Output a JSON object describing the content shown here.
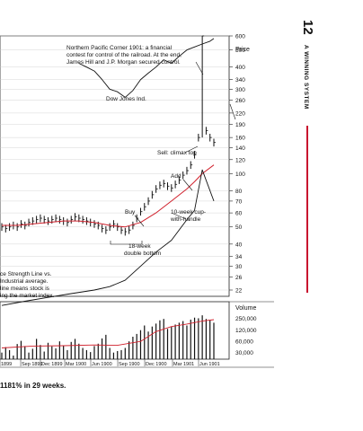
{
  "sidebar": {
    "chapter_number": "12",
    "chapter_title": "A WINNING SYSTEM",
    "accent_color": "#c8102e"
  },
  "caption": "1181% in 29 weeks.",
  "chart_data": {
    "type": "line",
    "price_axis_title": "Price",
    "price_ticks": [
      600,
      500,
      400,
      340,
      300,
      260,
      220,
      190,
      160,
      140,
      120,
      100,
      80,
      70,
      60,
      50,
      40,
      34,
      30,
      26,
      22
    ],
    "volume_axis_title": "Volume",
    "volume_ticks": [
      "250,000",
      "120,000",
      "60,000",
      "30,000"
    ],
    "x_ticks": [
      "1899",
      "Sep 1899",
      "Dec 1899",
      "Mar 1900",
      "Jun 1900",
      "Sep 1900",
      "Dec 1900",
      "Mar 1901",
      "Jun 1901"
    ],
    "annotations": {
      "top_note": [
        "Northern Pacific Corner 1901: a financial",
        "contest for control of the railroad. At the end,",
        "James Hill and J.P. Morgan secured control."
      ],
      "dow_jones": "Dow Jones Ind.",
      "sell": "Sell: climax top",
      "add": "Add",
      "buy": "Buy",
      "cup": [
        "10-week cup-",
        "with-handle"
      ],
      "base": [
        "18-week",
        "double bottom"
      ],
      "rs_note": [
        "ce Strength Line vs.",
        "Industrial average.",
        "line means stock is",
        "ing the market index."
      ]
    },
    "weekly_price": [
      [
        0,
        50
      ],
      [
        1,
        49
      ],
      [
        2,
        50
      ],
      [
        3,
        51
      ],
      [
        4,
        50
      ],
      [
        5,
        52
      ],
      [
        6,
        51
      ],
      [
        7,
        53
      ],
      [
        8,
        54
      ],
      [
        9,
        55
      ],
      [
        10,
        56
      ],
      [
        11,
        55
      ],
      [
        12,
        54
      ],
      [
        13,
        55
      ],
      [
        14,
        56
      ],
      [
        15,
        55
      ],
      [
        16,
        54
      ],
      [
        17,
        53
      ],
      [
        18,
        55
      ],
      [
        19,
        57
      ],
      [
        20,
        56
      ],
      [
        21,
        55
      ],
      [
        22,
        54
      ],
      [
        23,
        53
      ],
      [
        24,
        52
      ],
      [
        25,
        51
      ],
      [
        26,
        49
      ],
      [
        27,
        48
      ],
      [
        28,
        50
      ],
      [
        29,
        52
      ],
      [
        30,
        50
      ],
      [
        31,
        48
      ],
      [
        32,
        47
      ],
      [
        33,
        48
      ],
      [
        34,
        51
      ],
      [
        35,
        56
      ],
      [
        36,
        61
      ],
      [
        37,
        65
      ],
      [
        38,
        70
      ],
      [
        39,
        76
      ],
      [
        40,
        82
      ],
      [
        41,
        86
      ],
      [
        42,
        88
      ],
      [
        43,
        85
      ],
      [
        44,
        83
      ],
      [
        45,
        87
      ],
      [
        46,
        92
      ],
      [
        47,
        98
      ],
      [
        48,
        104
      ],
      [
        49,
        112
      ],
      [
        50,
        128
      ],
      [
        51,
        160
      ],
      [
        52,
        600
      ],
      [
        53,
        175
      ],
      [
        54,
        160
      ],
      [
        55,
        150
      ]
    ],
    "moving_average": [
      [
        0,
        51
      ],
      [
        4,
        51
      ],
      [
        8,
        52
      ],
      [
        12,
        53
      ],
      [
        16,
        54
      ],
      [
        20,
        54
      ],
      [
        24,
        53
      ],
      [
        28,
        51
      ],
      [
        32,
        50
      ],
      [
        36,
        53
      ],
      [
        40,
        60
      ],
      [
        44,
        70
      ],
      [
        48,
        82
      ],
      [
        50,
        90
      ],
      [
        52,
        100
      ],
      [
        55,
        112
      ]
    ],
    "dow_jones_index": [
      [
        20,
        420
      ],
      [
        22,
        400
      ],
      [
        24,
        380
      ],
      [
        26,
        340
      ],
      [
        28,
        300
      ],
      [
        30,
        290
      ],
      [
        32,
        270
      ],
      [
        34,
        295
      ],
      [
        36,
        340
      ],
      [
        38,
        370
      ],
      [
        40,
        400
      ],
      [
        42,
        440
      ],
      [
        44,
        420
      ],
      [
        46,
        460
      ],
      [
        48,
        500
      ],
      [
        50,
        520
      ],
      [
        52,
        540
      ],
      [
        54,
        560
      ],
      [
        55,
        580
      ]
    ],
    "relative_strength": [
      [
        0,
        18
      ],
      [
        6,
        19
      ],
      [
        12,
        20
      ],
      [
        18,
        21
      ],
      [
        24,
        22
      ],
      [
        28,
        23
      ],
      [
        32,
        25
      ],
      [
        36,
        30
      ],
      [
        40,
        36
      ],
      [
        44,
        42
      ],
      [
        48,
        55
      ],
      [
        50,
        62
      ],
      [
        52,
        105
      ],
      [
        55,
        70
      ]
    ],
    "weekly_volume": [
      30000,
      42000,
      35000,
      25000,
      51000,
      62000,
      45000,
      30000,
      38000,
      70000,
      48000,
      32000,
      55000,
      44000,
      39000,
      60000,
      45000,
      35000,
      58000,
      70000,
      52000,
      40000,
      35000,
      31000,
      45000,
      52000,
      72000,
      90000,
      40000,
      30000,
      33000,
      35000,
      40000,
      60000,
      80000,
      95000,
      120000,
      160000,
      110000,
      150000,
      180000,
      220000,
      240000,
      130000,
      150000,
      170000,
      190000,
      210000,
      160000,
      230000,
      260000,
      250000,
      300000,
      240000,
      220000,
      190000
    ],
    "volume_average": [
      [
        0,
        40000
      ],
      [
        8,
        45000
      ],
      [
        16,
        46000
      ],
      [
        24,
        48000
      ],
      [
        30,
        47000
      ],
      [
        36,
        60000
      ],
      [
        40,
        110000
      ],
      [
        44,
        150000
      ],
      [
        48,
        175000
      ],
      [
        52,
        210000
      ],
      [
        55,
        230000
      ]
    ],
    "colors": {
      "moving_average": "#d0202c",
      "bars": "#111111",
      "grid": "#cccccc"
    }
  }
}
